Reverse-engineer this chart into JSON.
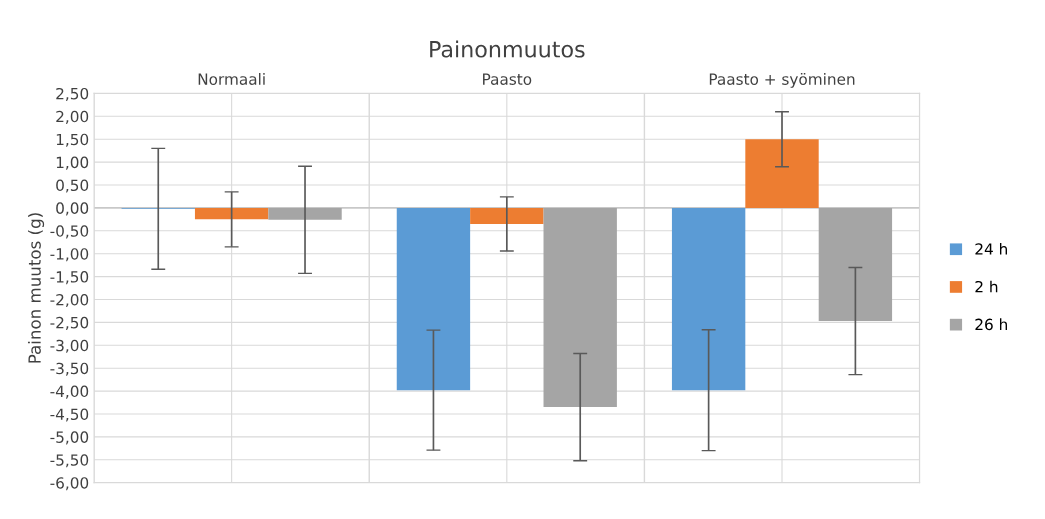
{
  "chart_data": {
    "type": "bar",
    "title": "Painonmuutos",
    "ylabel": "Painon muutos (g)",
    "categories": [
      "Normaali",
      "Paasto",
      "Paasto + syöminen"
    ],
    "series": [
      {
        "name": "24 h",
        "color": "#5b9bd5",
        "values": [
          -0.02,
          -3.98,
          -3.98
        ],
        "errors": [
          1.32,
          1.31,
          1.32
        ]
      },
      {
        "name": "2 h",
        "color": "#ed7d31",
        "values": [
          -0.25,
          -0.35,
          1.5
        ],
        "errors": [
          0.6,
          0.59,
          0.6
        ]
      },
      {
        "name": "26 h",
        "color": "#a5a5a5",
        "values": [
          -0.26,
          -4.35,
          -2.47
        ],
        "errors": [
          1.17,
          1.17,
          1.17
        ]
      }
    ],
    "ylim": [
      -6,
      2.5
    ],
    "yticks": [
      {
        "value": -6,
        "label": "-6,00"
      },
      {
        "value": -5.5,
        "label": "-5,50"
      },
      {
        "value": -5,
        "label": "-5,00"
      },
      {
        "value": -4.5,
        "label": "-4,50"
      },
      {
        "value": -4,
        "label": "-4,00"
      },
      {
        "value": -3.5,
        "label": "-3,50"
      },
      {
        "value": -3,
        "label": "-3,00"
      },
      {
        "value": -2.5,
        "label": "-2,50"
      },
      {
        "value": -2,
        "label": "-2,00"
      },
      {
        "value": -1.5,
        "label": "-1,50"
      },
      {
        "value": -1,
        "label": "-1,00"
      },
      {
        "value": -0.5,
        "label": "-0,50"
      },
      {
        "value": 0,
        "label": "0,00"
      },
      {
        "value": 0.5,
        "label": "0,50"
      },
      {
        "value": 1,
        "label": "1,00"
      },
      {
        "value": 1.5,
        "label": "1,50"
      },
      {
        "value": 2,
        "label": "2,00"
      },
      {
        "value": 2.5,
        "label": "2,50"
      }
    ],
    "grid": true,
    "legend": "right"
  }
}
